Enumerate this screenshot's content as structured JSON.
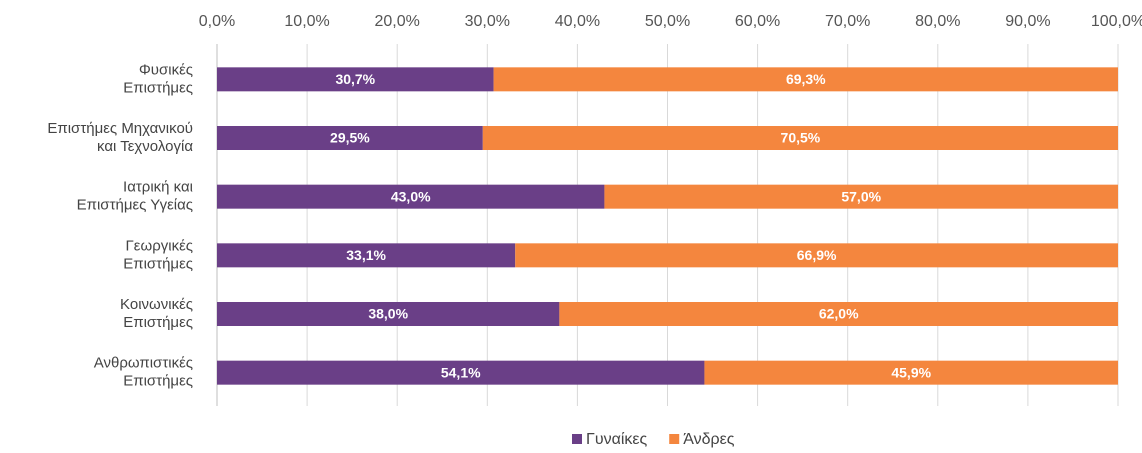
{
  "chart_data": {
    "type": "stacked-barh",
    "categories": [
      [
        "Φυσικές",
        "Επιστήμες"
      ],
      [
        "Επιστήμες Μηχανικού",
        "και Τεχνολογία"
      ],
      [
        "Ιατρική και",
        "Επιστήμες Υγείας"
      ],
      [
        "Γεωργικές",
        "Επιστήμες"
      ],
      [
        "Κοινωνικές",
        "Επιστήμες"
      ],
      [
        "Ανθρωπιστικές",
        "Επιστήμες"
      ]
    ],
    "series": [
      {
        "name": "Γυναίκες",
        "color": "#6a3f87",
        "values": [
          30.7,
          29.5,
          43.0,
          33.1,
          38.0,
          54.1
        ],
        "value_labels": [
          "30,7%",
          "29,5%",
          "43,0%",
          "33,1%",
          "38,0%",
          "54,1%"
        ]
      },
      {
        "name": "Άνδρες",
        "color": "#f4863e",
        "values": [
          69.3,
          70.5,
          57.0,
          66.9,
          62.0,
          45.9
        ],
        "value_labels": [
          "69,3%",
          "70,5%",
          "57,0%",
          "66,9%",
          "62,0%",
          "45,9%"
        ]
      }
    ],
    "xlim": [
      0,
      100
    ],
    "xticks": [
      {
        "value": 0,
        "label": "0,0%"
      },
      {
        "value": 10,
        "label": "10,0%"
      },
      {
        "value": 20,
        "label": "20,0%"
      },
      {
        "value": 30,
        "label": "30,0%"
      },
      {
        "value": 40,
        "label": "40,0%"
      },
      {
        "value": 50,
        "label": "50,0%"
      },
      {
        "value": 60,
        "label": "60,0%"
      },
      {
        "value": 70,
        "label": "70,0%"
      },
      {
        "value": 80,
        "label": "80,0%"
      },
      {
        "value": 90,
        "label": "90,0%"
      },
      {
        "value": 100,
        "label": "100,0%"
      }
    ],
    "grid": true,
    "legend": "bottom"
  }
}
